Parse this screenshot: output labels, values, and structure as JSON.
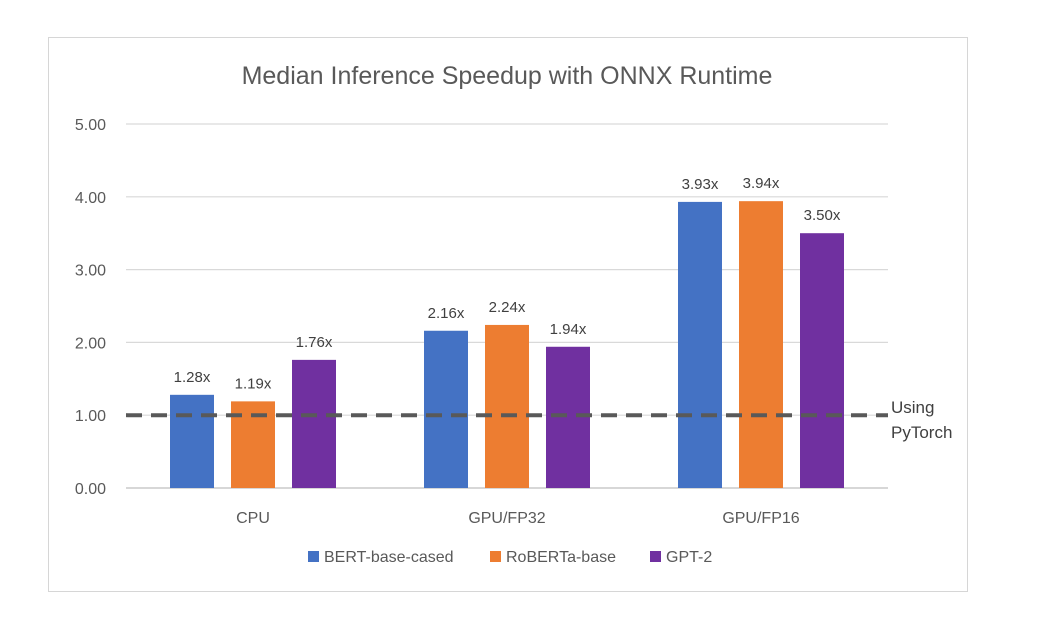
{
  "chart_data": {
    "type": "bar",
    "title": "Median Inference Speedup with ONNX Runtime",
    "xlabel": "",
    "ylabel": "",
    "categories": [
      "CPU",
      "GPU/FP32",
      "GPU/FP16"
    ],
    "ylim": [
      0,
      5
    ],
    "yticks": [
      "0.00",
      "1.00",
      "2.00",
      "3.00",
      "4.00",
      "5.00"
    ],
    "grid": true,
    "legend_position": "bottom",
    "series": [
      {
        "name": "BERT-base-cased",
        "color": "#4472C4",
        "values": [
          1.28,
          2.16,
          3.93
        ],
        "labels": [
          "1.28x",
          "2.16x",
          "3.93x"
        ]
      },
      {
        "name": "RoBERTa-base",
        "color": "#ED7D31",
        "values": [
          1.19,
          2.24,
          3.94
        ],
        "labels": [
          "1.19x",
          "2.24x",
          "3.94x"
        ]
      },
      {
        "name": "GPT-2",
        "color": "#7030A0",
        "values": [
          1.76,
          1.94,
          3.5
        ],
        "labels": [
          "1.76x",
          "1.94x",
          "3.50x"
        ]
      }
    ],
    "baseline": {
      "value": 1.0,
      "label_lines": [
        "Using",
        "PyTorch"
      ],
      "color": "#595959",
      "style": "dashed"
    }
  }
}
